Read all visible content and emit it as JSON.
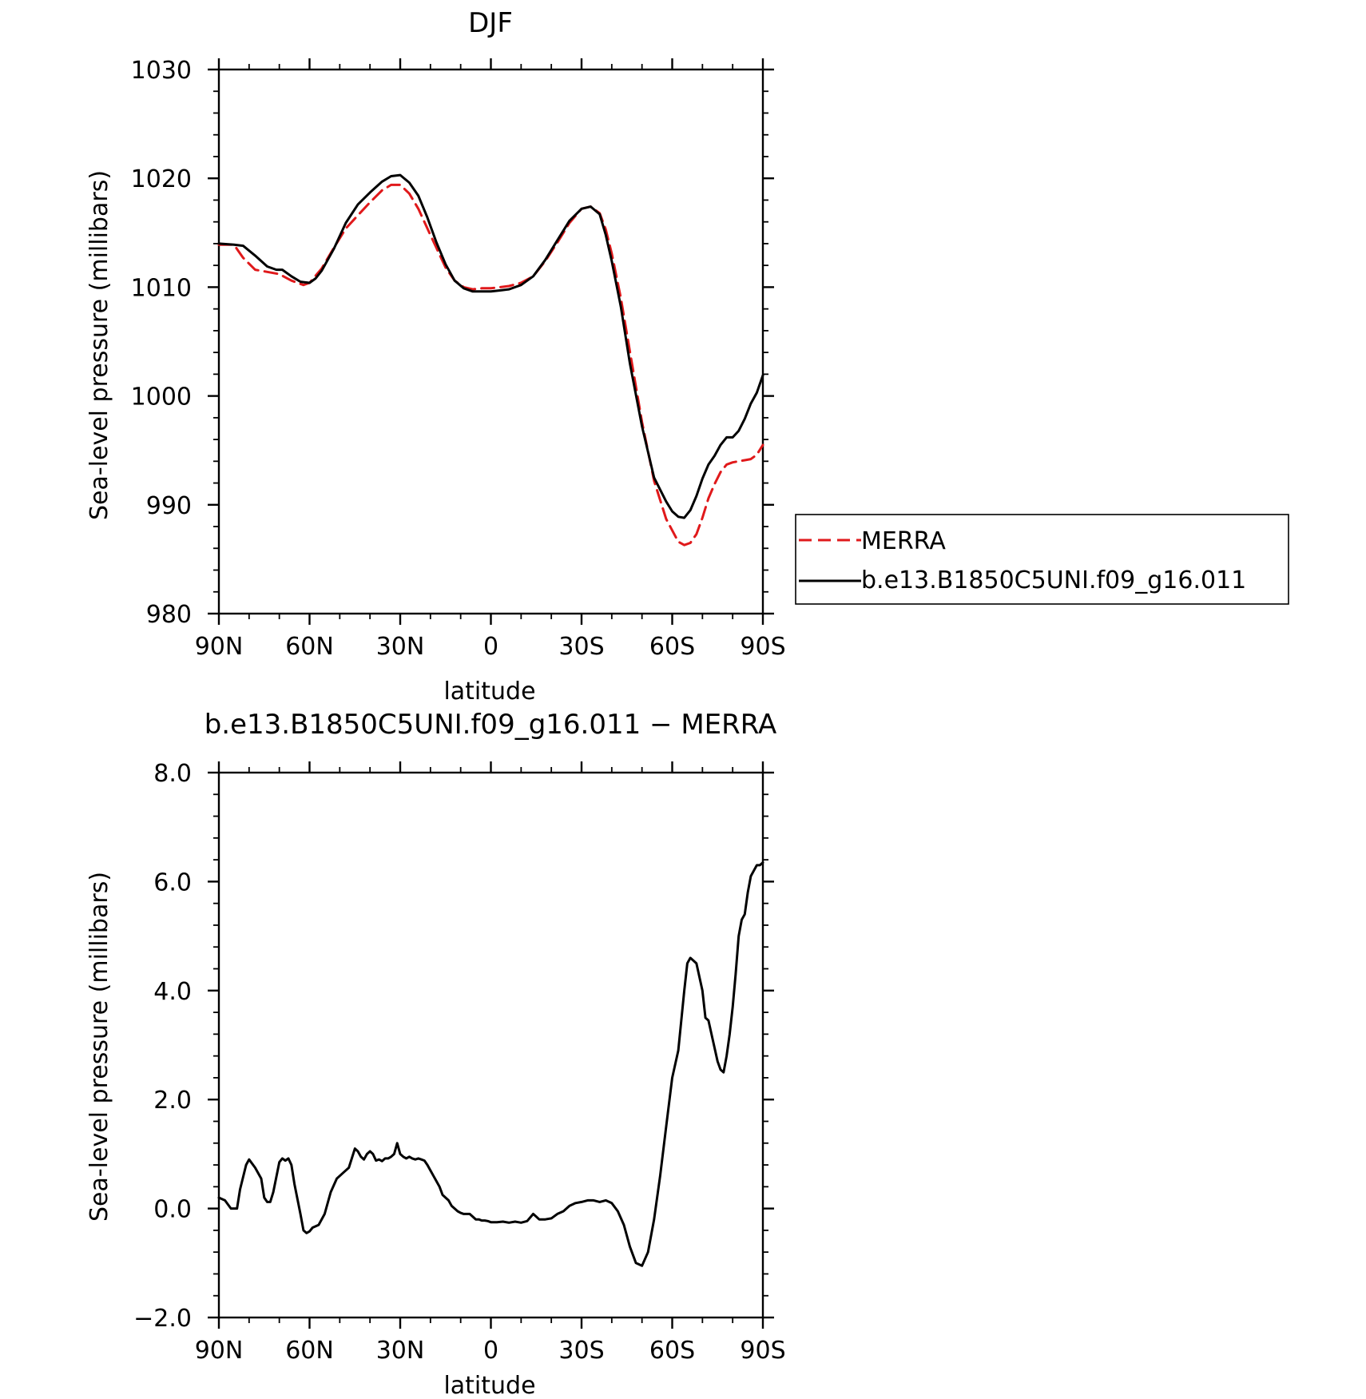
{
  "chart_data": [
    {
      "type": "line",
      "title": "DJF",
      "xlabel": "latitude",
      "ylabel": "Sea-level pressure (millibars)",
      "x_ticks": [
        {
          "value": 90,
          "label": "90N"
        },
        {
          "value": 60,
          "label": "60N"
        },
        {
          "value": 30,
          "label": "30N"
        },
        {
          "value": 0,
          "label": "0"
        },
        {
          "value": -30,
          "label": "30S"
        },
        {
          "value": -60,
          "label": "60S"
        },
        {
          "value": -90,
          "label": "90S"
        }
      ],
      "y_ticks": [
        {
          "value": 980,
          "label": "980"
        },
        {
          "value": 990,
          "label": "990"
        },
        {
          "value": 1000,
          "label": "1000"
        },
        {
          "value": 1010,
          "label": "1010"
        },
        {
          "value": 1020,
          "label": "1020"
        },
        {
          "value": 1030,
          "label": "1030"
        }
      ],
      "xlim": [
        90,
        -90
      ],
      "ylim": [
        980,
        1030
      ],
      "grid": false,
      "legend_position": "right",
      "series": [
        {
          "name": "MERRA",
          "color": "#e0191b",
          "dash": "dashed",
          "x": [
            90,
            85,
            82,
            78,
            74,
            70,
            66,
            62,
            60,
            56,
            52,
            48,
            44,
            40,
            36,
            33,
            30,
            27,
            24,
            21,
            18,
            15,
            12,
            9,
            6,
            3,
            0,
            -3,
            -6,
            -10,
            -14,
            -18,
            -22,
            -26,
            -30,
            -33,
            -36,
            -38,
            -40,
            -43,
            -46,
            -50,
            -54,
            -58,
            -62,
            -64,
            -66,
            -68,
            -70,
            -72,
            -74,
            -76,
            -78,
            -80,
            -82,
            -84,
            -86,
            -88,
            -90
          ],
          "y": [
            1013.9,
            1013.9,
            1012.7,
            1011.6,
            1011.4,
            1011.2,
            1010.6,
            1010.2,
            1010.4,
            1011.7,
            1013.6,
            1015.4,
            1016.6,
            1017.8,
            1018.9,
            1019.4,
            1019.4,
            1018.6,
            1017.2,
            1015.4,
            1013.6,
            1011.8,
            1010.6,
            1010.0,
            1009.8,
            1009.9,
            1009.9,
            1010.0,
            1010.1,
            1010.4,
            1011.0,
            1012.4,
            1014.1,
            1015.9,
            1017.2,
            1017.4,
            1016.8,
            1015.3,
            1013.1,
            1009.0,
            1004.1,
            997.6,
            992.2,
            988.7,
            986.6,
            986.3,
            986.5,
            987.3,
            988.8,
            990.6,
            991.9,
            993.0,
            993.7,
            993.9,
            994.0,
            994.1,
            994.2,
            994.6,
            995.5
          ]
        },
        {
          "name": "b.e13.B1850C5UNI.f09_g16.011",
          "color": "#000000",
          "dash": "solid",
          "x": [
            90,
            85,
            82,
            78,
            74,
            71,
            69,
            66,
            63,
            60,
            58,
            56,
            52,
            48,
            44,
            40,
            36,
            33,
            30,
            27,
            24,
            21,
            18,
            15,
            12,
            9,
            6,
            3,
            0,
            -3,
            -6,
            -10,
            -14,
            -18,
            -22,
            -26,
            -30,
            -33,
            -36,
            -38,
            -40,
            -43,
            -46,
            -50,
            -54,
            -58,
            -60,
            -62,
            -64,
            -66,
            -68,
            -70,
            -72,
            -74,
            -76,
            -78,
            -80,
            -82,
            -84,
            -86,
            -88,
            -90
          ],
          "y": [
            1014.0,
            1013.9,
            1013.8,
            1012.9,
            1011.9,
            1011.6,
            1011.6,
            1011.0,
            1010.5,
            1010.4,
            1010.8,
            1011.5,
            1013.5,
            1015.9,
            1017.6,
            1018.7,
            1019.7,
            1020.2,
            1020.3,
            1019.6,
            1018.4,
            1016.4,
            1014.1,
            1012.1,
            1010.6,
            1009.9,
            1009.6,
            1009.6,
            1009.6,
            1009.7,
            1009.8,
            1010.2,
            1011.0,
            1012.5,
            1014.3,
            1016.1,
            1017.2,
            1017.4,
            1016.7,
            1014.8,
            1012.4,
            1008.2,
            1003.0,
            997.2,
            992.5,
            990.3,
            989.4,
            988.9,
            988.8,
            989.5,
            990.8,
            992.4,
            993.7,
            994.5,
            995.5,
            996.2,
            996.2,
            996.8,
            997.9,
            999.3,
            1000.3,
            1001.9
          ]
        }
      ]
    },
    {
      "type": "line",
      "title": "b.e13.B1850C5UNI.f09_g16.011 − MERRA",
      "xlabel": "latitude",
      "ylabel": "Sea-level pressure (millibars)",
      "x_ticks": [
        {
          "value": 90,
          "label": "90N"
        },
        {
          "value": 60,
          "label": "60N"
        },
        {
          "value": 30,
          "label": "30N"
        },
        {
          "value": 0,
          "label": "0"
        },
        {
          "value": -30,
          "label": "30S"
        },
        {
          "value": -60,
          "label": "60S"
        },
        {
          "value": -90,
          "label": "90S"
        }
      ],
      "y_ticks": [
        {
          "value": -2,
          "label": "−2.0"
        },
        {
          "value": 0,
          "label": "0.0"
        },
        {
          "value": 2,
          "label": "2.0"
        },
        {
          "value": 4,
          "label": "4.0"
        },
        {
          "value": 6,
          "label": "6.0"
        },
        {
          "value": 8,
          "label": "8.0"
        }
      ],
      "xlim": [
        90,
        -90
      ],
      "ylim": [
        -2,
        8
      ],
      "grid": false,
      "series": [
        {
          "color": "#000000",
          "dash": "solid",
          "x": [
            90,
            88,
            86,
            84,
            83,
            81,
            80,
            78,
            76,
            75,
            74,
            73,
            72,
            70,
            69,
            68,
            67,
            66,
            65,
            63,
            62,
            61,
            60,
            59,
            57,
            55,
            53,
            51,
            49,
            47,
            45,
            44,
            43,
            42,
            41,
            40,
            39,
            38,
            37,
            36,
            35,
            34,
            33,
            32,
            31,
            30,
            29,
            28,
            27,
            26,
            25,
            24,
            23,
            22,
            21,
            20,
            19,
            18,
            17,
            16,
            15,
            14,
            13,
            12,
            11,
            10,
            9,
            8,
            7,
            6,
            5,
            4,
            3,
            2,
            1,
            0,
            -2,
            -4,
            -6,
            -8,
            -10,
            -12,
            -14,
            -15,
            -16,
            -17,
            -18,
            -20,
            -22,
            -24,
            -26,
            -28,
            -30,
            -32,
            -34,
            -36,
            -38,
            -40,
            -42,
            -44,
            -46,
            -48,
            -50,
            -52,
            -54,
            -56,
            -58,
            -60,
            -62,
            -64,
            -65,
            -66,
            -67,
            -68,
            -70,
            -71,
            -72,
            -73,
            -74,
            -75,
            -76,
            -77,
            -78,
            -79,
            -80,
            -81,
            -82,
            -83,
            -84,
            -85,
            -86,
            -87,
            -88,
            -89,
            -90
          ],
          "y": [
            0.2,
            0.15,
            0.0,
            0.0,
            0.35,
            0.8,
            0.9,
            0.75,
            0.55,
            0.2,
            0.12,
            0.12,
            0.3,
            0.85,
            0.92,
            0.88,
            0.92,
            0.8,
            0.45,
            -0.1,
            -0.4,
            -0.45,
            -0.42,
            -0.35,
            -0.3,
            -0.1,
            0.3,
            0.55,
            0.65,
            0.75,
            1.1,
            1.05,
            0.95,
            0.9,
            1.0,
            1.05,
            1.0,
            0.88,
            0.9,
            0.87,
            0.92,
            0.92,
            0.95,
            1.0,
            1.2,
            1.0,
            0.95,
            0.92,
            0.95,
            0.92,
            0.9,
            0.92,
            0.9,
            0.88,
            0.8,
            0.7,
            0.6,
            0.5,
            0.4,
            0.25,
            0.2,
            0.15,
            0.05,
            0.0,
            -0.05,
            -0.08,
            -0.1,
            -0.1,
            -0.1,
            -0.15,
            -0.2,
            -0.2,
            -0.22,
            -0.22,
            -0.23,
            -0.25,
            -0.25,
            -0.24,
            -0.26,
            -0.24,
            -0.26,
            -0.23,
            -0.1,
            -0.15,
            -0.2,
            -0.2,
            -0.2,
            -0.18,
            -0.1,
            -0.05,
            0.05,
            0.1,
            0.12,
            0.15,
            0.15,
            0.12,
            0.15,
            0.1,
            -0.05,
            -0.3,
            -0.7,
            -1.0,
            -1.05,
            -0.8,
            -0.2,
            0.6,
            1.5,
            2.4,
            2.9,
            4.0,
            4.5,
            4.6,
            4.55,
            4.5,
            4.0,
            3.5,
            3.45,
            3.2,
            2.95,
            2.7,
            2.55,
            2.5,
            2.8,
            3.2,
            3.7,
            4.3,
            5.0,
            5.3,
            5.4,
            5.8,
            6.1,
            6.2,
            6.3,
            6.3,
            6.35
          ]
        }
      ]
    }
  ]
}
